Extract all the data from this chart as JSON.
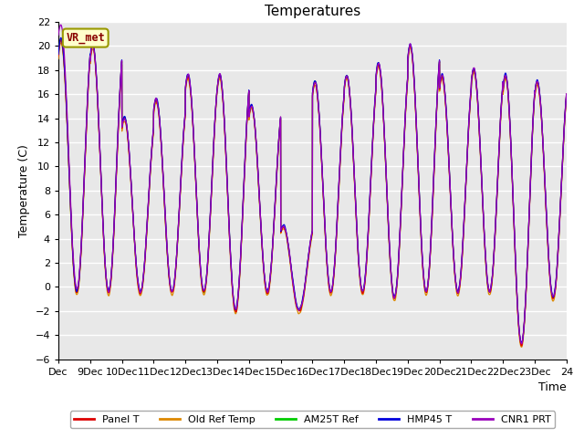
{
  "title": "Temperatures",
  "xlabel": "Time",
  "ylabel": "Temperature (C)",
  "ylim": [
    -6,
    22
  ],
  "yticks": [
    -6,
    -4,
    -2,
    0,
    2,
    4,
    6,
    8,
    10,
    12,
    14,
    16,
    18,
    20,
    22
  ],
  "x_tick_labels": [
    "Dec",
    "9Dec",
    "10Dec",
    "11Dec",
    "12Dec",
    "13Dec",
    "14Dec",
    "15Dec",
    "16Dec",
    "17Dec",
    "18Dec",
    "19Dec",
    "20Dec",
    "21Dec",
    "22Dec",
    "23Dec",
    "24"
  ],
  "legend_labels": [
    "Panel T",
    "Old Ref Temp",
    "AM25T Ref",
    "HMP45 T",
    "CNR1 PRT"
  ],
  "legend_colors": [
    "#dd0000",
    "#dd8800",
    "#00cc00",
    "#0000dd",
    "#9900bb"
  ],
  "annotation_text": "VR_met",
  "annotation_box_facecolor": "#ffffcc",
  "annotation_box_edgecolor": "#999900",
  "annotation_text_color": "#880000",
  "plot_bg_color": "#e8e8e8",
  "grid_color": "#ffffff",
  "fig_bg_color": "#ffffff"
}
